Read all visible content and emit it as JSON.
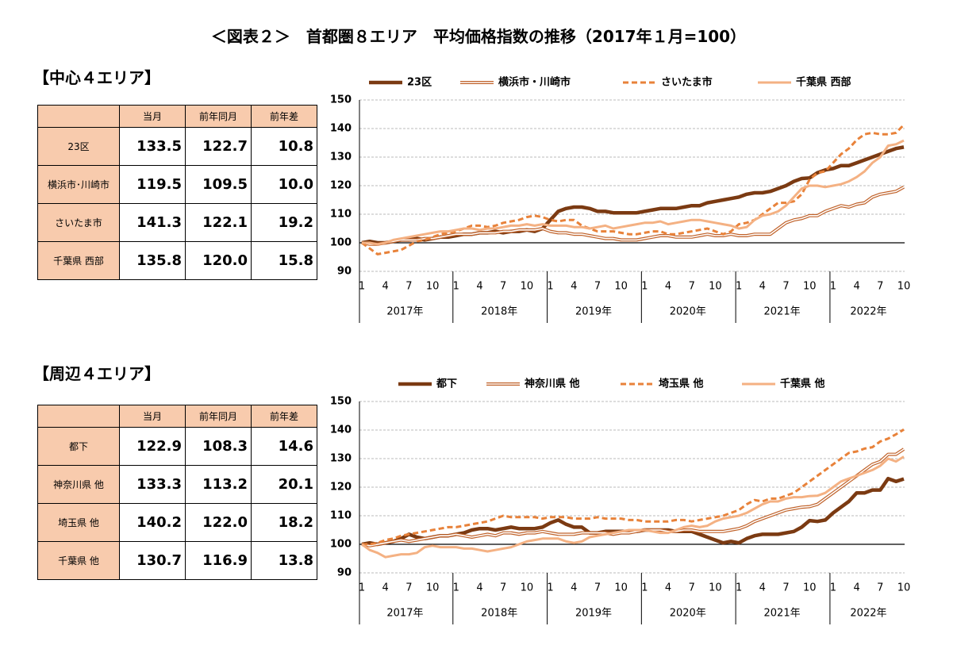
{
  "title": "＜図表２＞　首都圏８エリア　平均価格指数の推移（2017年１月=100）",
  "sections": [
    {
      "heading": "【中心４エリア】",
      "table": {
        "header": [
          "当月",
          "前年同月",
          "前年差"
        ],
        "rows": [
          [
            "23区",
            "133.5",
            "122.7",
            "10.8"
          ],
          [
            "横浜市･川崎市",
            "119.5",
            "109.5",
            "10.0"
          ],
          [
            "さいたま市",
            "141.3",
            "122.1",
            "19.2"
          ],
          [
            "千葉県 西部",
            "135.8",
            "120.0",
            "15.8"
          ]
        ]
      }
    },
    {
      "heading": "【周辺４エリア】",
      "table": {
        "header": [
          "当月",
          "前年同月",
          "前年差"
        ],
        "rows": [
          [
            "都下",
            "122.9",
            "108.3",
            "14.6"
          ],
          [
            "神奈川県 他",
            "133.3",
            "113.2",
            "20.1"
          ],
          [
            "埼玉県 他",
            "140.2",
            "122.0",
            "18.2"
          ],
          [
            "千葉県 他",
            "130.7",
            "116.9",
            "13.8"
          ]
        ]
      }
    }
  ],
  "chart_data": [
    {
      "type": "line",
      "ylim": [
        90,
        150
      ],
      "yticks": [
        90,
        100,
        110,
        120,
        130,
        140,
        150
      ],
      "grid": true,
      "baseline": 100,
      "categories": [
        "1",
        null,
        null,
        "4",
        null,
        null,
        "7",
        null,
        null,
        "10",
        null,
        null,
        "1",
        null,
        null,
        "4",
        null,
        null,
        "7",
        null,
        null,
        "10",
        null,
        null,
        "1",
        null,
        null,
        "4",
        null,
        null,
        "7",
        null,
        null,
        "10",
        null,
        null,
        "1",
        null,
        null,
        "4",
        null,
        null,
        "7",
        null,
        null,
        "10",
        null,
        null,
        "1",
        null,
        null,
        "4",
        null,
        null,
        "7",
        null,
        null,
        "10",
        null,
        null,
        "1",
        null,
        null,
        "4",
        null,
        null,
        "7",
        null,
        null,
        "10"
      ],
      "year_labels": [
        "2017年",
        "2018年",
        "2019年",
        "2020年",
        "2021年",
        "2022年"
      ],
      "series": [
        {
          "name": "23区",
          "color": "#7b3a12",
          "style": "thick",
          "values": [
            100,
            100.5,
            100,
            100,
            100.5,
            101,
            101,
            101.5,
            101,
            101.5,
            102,
            102,
            102.5,
            103,
            103,
            103.5,
            103.5,
            104,
            103.5,
            104,
            104,
            104.5,
            104,
            105,
            108,
            111,
            112,
            112.5,
            112.5,
            112,
            111,
            111,
            110.5,
            110.5,
            110.5,
            110.5,
            111,
            111.5,
            112,
            112,
            112,
            112.5,
            113,
            113,
            114,
            114.5,
            115,
            115.5,
            116,
            117,
            117.5,
            117.5,
            118,
            119,
            120,
            121.5,
            122.5,
            122.7,
            124.5,
            125.5,
            126,
            127,
            127,
            128,
            129,
            130,
            131,
            132,
            133,
            133.5
          ]
        },
        {
          "name": "横浜市・川崎市",
          "color": "#c0622a",
          "style": "double",
          "values": [
            100,
            99.5,
            99.5,
            100,
            100.5,
            101,
            101,
            101,
            101.5,
            101.5,
            102,
            102.5,
            103,
            103,
            103,
            103.5,
            103.5,
            103.5,
            104,
            104,
            104.5,
            104.5,
            104.5,
            105,
            104,
            103.5,
            103.5,
            103,
            103,
            102.5,
            102,
            101.5,
            101.5,
            101,
            101,
            101,
            101.5,
            102,
            102.5,
            102.5,
            102,
            102,
            102,
            102.5,
            103,
            102.5,
            102.5,
            103,
            102.5,
            102.5,
            103,
            103,
            103,
            105,
            107,
            108,
            108.5,
            109.5,
            109.5,
            111,
            112,
            113,
            112.5,
            113.5,
            114,
            116,
            117,
            117.5,
            118,
            119.5
          ]
        },
        {
          "name": "さいたま市",
          "color": "#e8823a",
          "style": "dashed",
          "values": [
            100,
            98,
            96,
            96.5,
            97,
            97.5,
            99,
            100.5,
            101,
            102,
            103,
            103.5,
            104,
            105,
            106,
            106,
            105.5,
            106,
            107,
            107.5,
            108,
            109,
            109.5,
            109,
            108,
            107.5,
            108,
            108,
            106,
            105,
            104,
            104,
            104,
            103.5,
            103,
            103,
            103.5,
            104,
            104,
            103,
            103,
            103.5,
            104,
            104.5,
            105,
            104,
            103,
            104,
            106.5,
            107,
            108,
            110,
            112,
            114,
            114,
            114.5,
            117,
            122.1,
            124.5,
            125,
            128,
            131,
            133,
            136,
            138,
            138.5,
            138,
            138,
            138.5,
            141.3
          ]
        },
        {
          "name": "千葉県 西部",
          "color": "#f4b183",
          "style": "solid",
          "values": [
            100,
            100,
            99.5,
            100,
            101,
            101.5,
            102,
            102.5,
            103,
            103.5,
            104,
            104,
            104.5,
            105,
            105,
            104.5,
            105,
            105,
            105.5,
            106,
            106,
            106.5,
            106,
            106.5,
            106,
            106,
            106,
            105.5,
            105.5,
            105,
            105.5,
            106,
            105,
            105.5,
            106,
            106.5,
            107,
            107,
            107.5,
            106.5,
            107,
            107.5,
            108,
            108,
            107.5,
            107,
            106.5,
            106,
            105,
            105.5,
            108,
            109.5,
            110,
            111,
            113,
            116,
            119,
            120,
            120,
            119.5,
            120,
            120.5,
            121.5,
            123,
            125,
            128,
            130,
            134,
            134.5,
            135.8
          ]
        }
      ]
    },
    {
      "type": "line",
      "ylim": [
        90,
        150
      ],
      "yticks": [
        90,
        100,
        110,
        120,
        130,
        140,
        150
      ],
      "grid": true,
      "baseline": 100,
      "categories": [
        "1",
        null,
        null,
        "4",
        null,
        null,
        "7",
        null,
        null,
        "10",
        null,
        null,
        "1",
        null,
        null,
        "4",
        null,
        null,
        "7",
        null,
        null,
        "10",
        null,
        null,
        "1",
        null,
        null,
        "4",
        null,
        null,
        "7",
        null,
        null,
        "10",
        null,
        null,
        "1",
        null,
        null,
        "4",
        null,
        null,
        "7",
        null,
        null,
        "10",
        null,
        null,
        "1",
        null,
        null,
        "4",
        null,
        null,
        "7",
        null,
        null,
        "10",
        null,
        null,
        "1",
        null,
        null,
        "4",
        null,
        null,
        "7",
        null,
        null,
        "10"
      ],
      "year_labels": [
        "2017年",
        "2018年",
        "2019年",
        "2020年",
        "2021年",
        "2022年"
      ],
      "series": [
        {
          "name": "都下",
          "color": "#7b3a12",
          "style": "thick",
          "values": [
            100,
            100.5,
            100,
            100.5,
            101,
            102,
            103.5,
            102.5,
            102,
            102.5,
            103,
            103,
            103.5,
            104,
            105,
            105.5,
            105.5,
            105,
            105.5,
            106,
            105.5,
            105.5,
            105.5,
            106,
            107.5,
            108.5,
            107,
            106,
            106,
            104,
            104,
            104.5,
            104.5,
            104.5,
            104.5,
            104.5,
            105,
            105,
            105,
            105,
            104.5,
            104.5,
            104.5,
            103.5,
            102.5,
            101.5,
            100.5,
            101,
            100.5,
            102,
            103,
            103.5,
            103.5,
            103.5,
            104,
            104.5,
            106,
            108.3,
            108,
            108.5,
            111,
            113,
            115,
            118,
            118,
            119,
            119,
            123,
            122,
            122.9
          ]
        },
        {
          "name": "神奈川県 他",
          "color": "#c0622a",
          "style": "double",
          "values": [
            100,
            99.5,
            100,
            100.5,
            101,
            101.5,
            101,
            101.5,
            102,
            102.5,
            103,
            103,
            103.5,
            103,
            102.5,
            103,
            103.5,
            103,
            104,
            104,
            103.5,
            104,
            104,
            104.5,
            104,
            103.5,
            103.5,
            103.5,
            104,
            104,
            104,
            104,
            103.5,
            104,
            104,
            104.5,
            105,
            105,
            105,
            104.5,
            104.5,
            105,
            105,
            104.5,
            104.5,
            104.5,
            104.5,
            105,
            105.5,
            106.5,
            108,
            109,
            110,
            111,
            112,
            112.5,
            113,
            113.2,
            114,
            116,
            118,
            120,
            122,
            124,
            126,
            128,
            129,
            131.5,
            131.5,
            133.3
          ]
        },
        {
          "name": "埼玉県 他",
          "color": "#e8823a",
          "style": "dashed",
          "values": [
            100,
            100,
            100.5,
            101.5,
            102,
            103,
            103.5,
            104,
            104.5,
            105,
            105.5,
            106,
            106,
            106.5,
            107,
            107.5,
            108,
            109,
            110,
            109.5,
            109.5,
            109.5,
            109.5,
            109,
            109.5,
            109.5,
            109.5,
            109,
            109,
            109,
            109.5,
            109,
            109,
            109,
            108.5,
            108.5,
            108,
            108,
            108,
            108,
            108.5,
            108.5,
            108,
            108.5,
            109,
            109.5,
            110,
            111,
            112,
            114,
            115.5,
            115,
            116,
            116,
            117,
            118,
            120,
            122,
            124,
            126,
            128,
            130,
            132,
            132.5,
            133.5,
            134,
            136,
            137,
            138.5,
            140.2
          ]
        },
        {
          "name": "千葉県 他",
          "color": "#f4b183",
          "style": "solid",
          "values": [
            100,
            98,
            97,
            95.5,
            96,
            96.5,
            96.5,
            97,
            99,
            99.5,
            99,
            99,
            99,
            98.5,
            98.5,
            98,
            97.5,
            98,
            98.5,
            99,
            100,
            101,
            101.5,
            102,
            102,
            102,
            101,
            100.5,
            101,
            102.5,
            103,
            103.5,
            104,
            104.5,
            105,
            105,
            105,
            104.5,
            104,
            104,
            105,
            106,
            106.5,
            106,
            106.5,
            108,
            109,
            109.5,
            110,
            111,
            112.5,
            114,
            115,
            115,
            116,
            116.5,
            116.5,
            116.9,
            117,
            118,
            120,
            122,
            123,
            124,
            125,
            126,
            127.5,
            130,
            129,
            130.7
          ]
        }
      ]
    }
  ]
}
